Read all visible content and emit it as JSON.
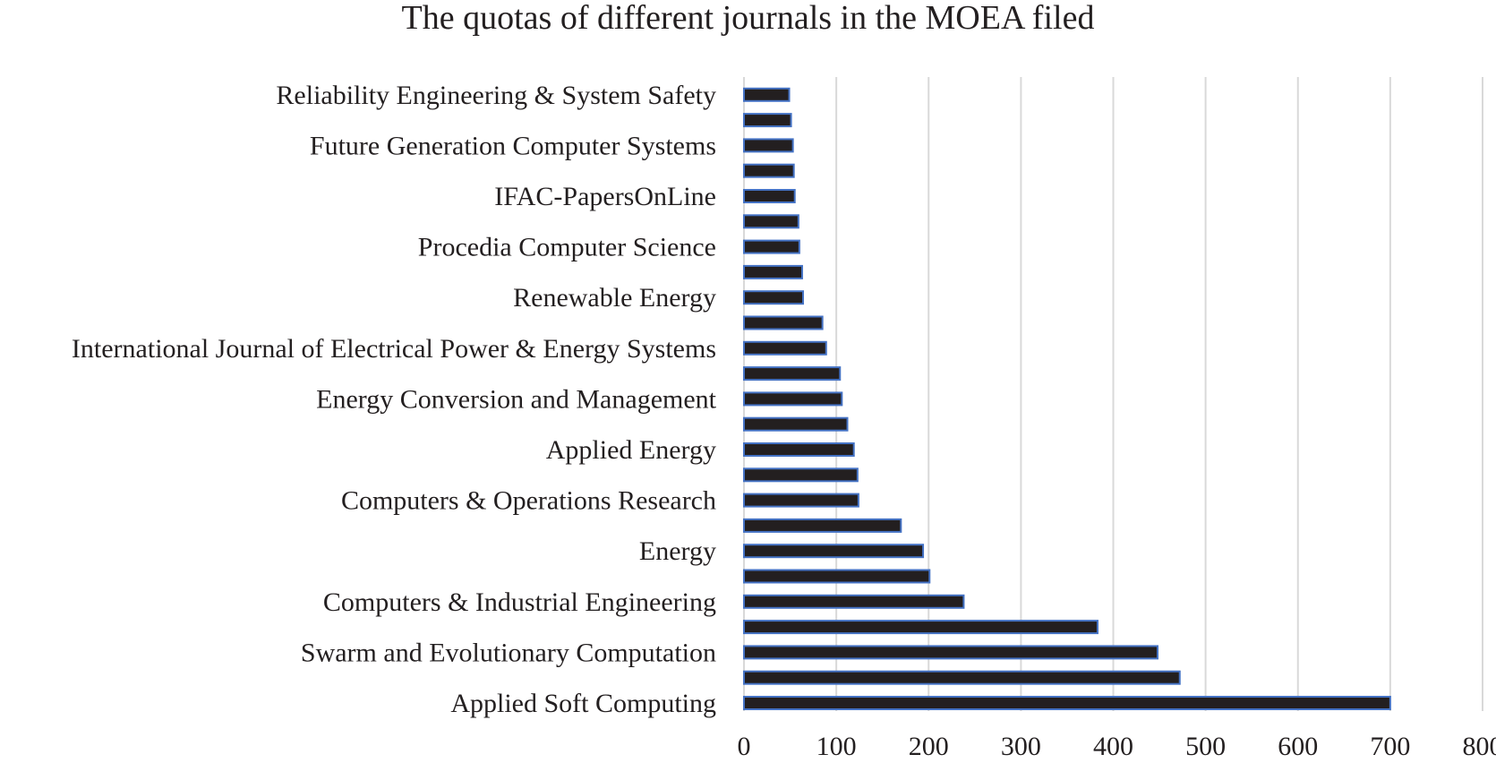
{
  "chart_data": {
    "type": "bar",
    "orientation": "horizontal",
    "title": "The quotas of different journals in the MOEA filed",
    "xlabel": "",
    "ylabel": "",
    "xlim": [
      0,
      800
    ],
    "x_ticks": [
      0,
      100,
      200,
      300,
      400,
      500,
      600,
      700,
      800
    ],
    "grid": "vertical",
    "legend": "none",
    "bar_color": "#231f20",
    "bar_edge_color": "#4472c4",
    "grid_color": "#d9d9d9",
    "bars_bottom_to_top": [
      {
        "label": "Applied Soft Computing",
        "value": 700
      },
      {
        "label": "",
        "value": 472
      },
      {
        "label": "Swarm and Evolutionary Computation",
        "value": 448
      },
      {
        "label": "",
        "value": 383
      },
      {
        "label": "Computers & Industrial Engineering",
        "value": 238
      },
      {
        "label": "",
        "value": 201
      },
      {
        "label": "Energy",
        "value": 194
      },
      {
        "label": "",
        "value": 170
      },
      {
        "label": "Computers & Operations Research",
        "value": 124
      },
      {
        "label": "",
        "value": 123
      },
      {
        "label": "Applied Energy",
        "value": 119
      },
      {
        "label": "",
        "value": 112
      },
      {
        "label": "Energy Conversion and Management",
        "value": 106
      },
      {
        "label": "",
        "value": 104
      },
      {
        "label": "International Journal of Electrical Power & Energy Systems",
        "value": 89
      },
      {
        "label": "",
        "value": 85
      },
      {
        "label": "Renewable Energy",
        "value": 64
      },
      {
        "label": "",
        "value": 63
      },
      {
        "label": "Procedia Computer Science",
        "value": 60
      },
      {
        "label": "",
        "value": 59
      },
      {
        "label": "IFAC-PapersOnLine",
        "value": 55
      },
      {
        "label": "",
        "value": 54
      },
      {
        "label": "Future Generation Computer Systems",
        "value": 53
      },
      {
        "label": "",
        "value": 51
      },
      {
        "label": "Reliability Engineering & System Safety",
        "value": 49
      }
    ]
  }
}
